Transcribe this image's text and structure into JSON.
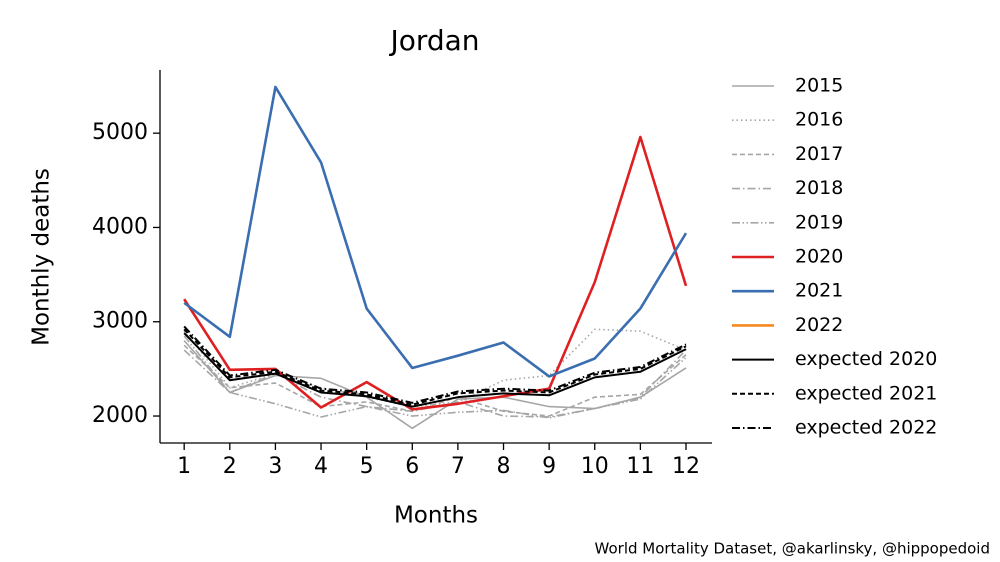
{
  "chart_data": {
    "type": "line",
    "title": "Jordan",
    "xlabel": "Months",
    "ylabel": "Monthly deaths",
    "source": "World Mortality Dataset, @akarlinsky, @hippopedoid",
    "x": [
      1,
      2,
      3,
      4,
      5,
      6,
      7,
      8,
      9,
      10,
      11,
      12
    ],
    "xlim": [
      0.47,
      12.57
    ],
    "xticks": [
      1,
      2,
      3,
      4,
      5,
      6,
      7,
      8,
      9,
      10,
      11,
      12
    ],
    "ylim": [
      1714,
      5670
    ],
    "yticks": [
      2000,
      3000,
      4000,
      5000
    ],
    "legend": "outside-right",
    "series": [
      {
        "name": "2015",
        "color": "#a6a6a6",
        "dash": "solid",
        "values": [
          2800,
          2250,
          2430,
          2400,
          2200,
          1870,
          2180,
          2200,
          2100,
          2080,
          2200,
          2510
        ]
      },
      {
        "name": "2016",
        "color": "#a6a6a6",
        "dash": "dotted",
        "values": [
          2900,
          2300,
          2450,
          2300,
          2200,
          2100,
          2150,
          2380,
          2430,
          2920,
          2900,
          2700
        ]
      },
      {
        "name": "2017",
        "color": "#a6a6a6",
        "dash": "dashed",
        "values": [
          2750,
          2300,
          2350,
          2100,
          2150,
          2050,
          2200,
          2050,
          2000,
          2200,
          2230,
          2650
        ]
      },
      {
        "name": "2018",
        "color": "#a6a6a6",
        "dash": "dashdot",
        "values": [
          2700,
          2250,
          2450,
          2200,
          2100,
          2050,
          2150,
          2000,
          1990,
          2080,
          2200,
          2700
        ]
      },
      {
        "name": "2019",
        "color": "#a6a6a6",
        "dash": "dashdotdot",
        "values": [
          2850,
          2250,
          2130,
          1990,
          2100,
          2000,
          2040,
          2060,
          1980,
          2080,
          2180,
          2620
        ]
      },
      {
        "name": "2020",
        "color": "#de2022",
        "dash": "solid",
        "values": [
          3240,
          2490,
          2500,
          2090,
          2360,
          2070,
          2130,
          2210,
          2290,
          3420,
          4960,
          3380
        ]
      },
      {
        "name": "2021",
        "color": "#3b6eb0",
        "dash": "solid",
        "values": [
          3200,
          2840,
          5490,
          4690,
          3140,
          2510,
          2640,
          2780,
          2420,
          2610,
          3140,
          3940
        ]
      },
      {
        "name": "2022",
        "color": "#f58a1f",
        "dash": "solid",
        "values": [
          null,
          null,
          null,
          null,
          null,
          null,
          null,
          null,
          null,
          null,
          null,
          null
        ]
      },
      {
        "name": "expected 2020",
        "color": "#000000",
        "dash": "solid",
        "values": [
          2880,
          2380,
          2450,
          2250,
          2210,
          2100,
          2200,
          2240,
          2220,
          2410,
          2470,
          2710
        ]
      },
      {
        "name": "expected 2021",
        "color": "#000000",
        "dash": "dashed",
        "values": [
          2920,
          2410,
          2470,
          2270,
          2230,
          2120,
          2240,
          2270,
          2250,
          2440,
          2500,
          2740
        ]
      },
      {
        "name": "expected 2022",
        "color": "#000000",
        "dash": "dashdot",
        "values": [
          2950,
          2430,
          2490,
          2290,
          2250,
          2140,
          2260,
          2290,
          2270,
          2460,
          2520,
          2760
        ]
      }
    ]
  }
}
